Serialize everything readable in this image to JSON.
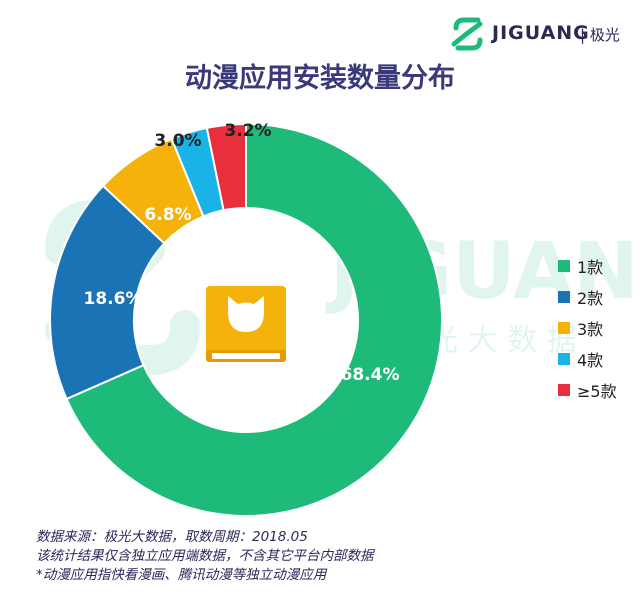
{
  "logo": {
    "brand": "JIGUANG",
    "sub": "极光",
    "icon": "jiguang-logo-icon"
  },
  "watermark": {
    "brand": "JIGUANG",
    "sub": "光 大 数 据"
  },
  "chart_data": {
    "type": "pie",
    "title": "动漫应用安装数量分布",
    "donut": true,
    "categories": [
      "1款",
      "2款",
      "3款",
      "4款",
      "≥5款"
    ],
    "values": [
      68.4,
      18.6,
      6.8,
      3.0,
      3.2
    ],
    "data_labels": [
      "68.4%",
      "18.6%",
      "6.8%",
      "3.0%",
      "3.2%"
    ],
    "colors": [
      "#1dba7a",
      "#1a73b4",
      "#f4b20a",
      "#1ab3e8",
      "#e8303d"
    ],
    "legend_position": "right",
    "center_icon": "cat-book-icon"
  },
  "notes": [
    "数据来源：极光大数据，取数周期：2018.05",
    "该统计结果仅含独立应用端数据，不含其它平台内部数据",
    "*动漫应用指快看漫画、腾讯动漫等独立动漫应用"
  ]
}
